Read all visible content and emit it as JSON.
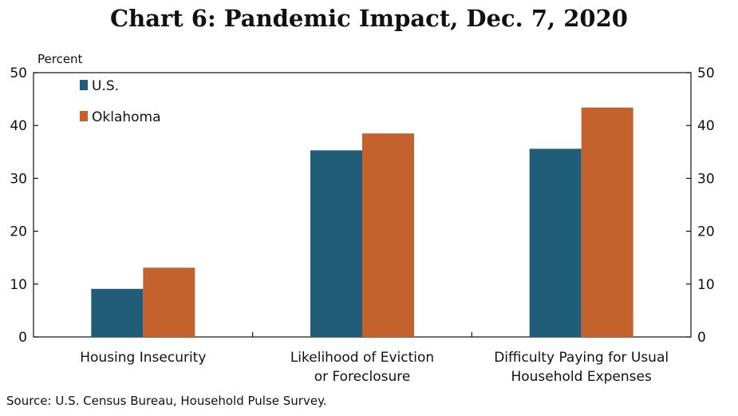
{
  "chart_data": {
    "type": "bar",
    "title": "Chart 6: Pandemic Impact, Dec. 7, 2020",
    "ylabel": "Percent",
    "ylim": [
      0,
      50
    ],
    "yticks": [
      0,
      10,
      20,
      30,
      40,
      50
    ],
    "categories": [
      [
        "Housing Insecurity"
      ],
      [
        "Likelihood of Eviction",
        "or Foreclosure"
      ],
      [
        "Difficulty Paying for Usual",
        "Household Expenses"
      ]
    ],
    "series": [
      {
        "name": "U.S.",
        "color": "#215d79",
        "values": [
          9.1,
          35.3,
          35.6
        ]
      },
      {
        "name": "Oklahoma",
        "color": "#c4622d",
        "values": [
          13.1,
          38.5,
          43.4
        ]
      }
    ],
    "legend_position": "top-left",
    "grid": false
  },
  "source": "Source: U.S. Census Bureau, Household Pulse Survey."
}
